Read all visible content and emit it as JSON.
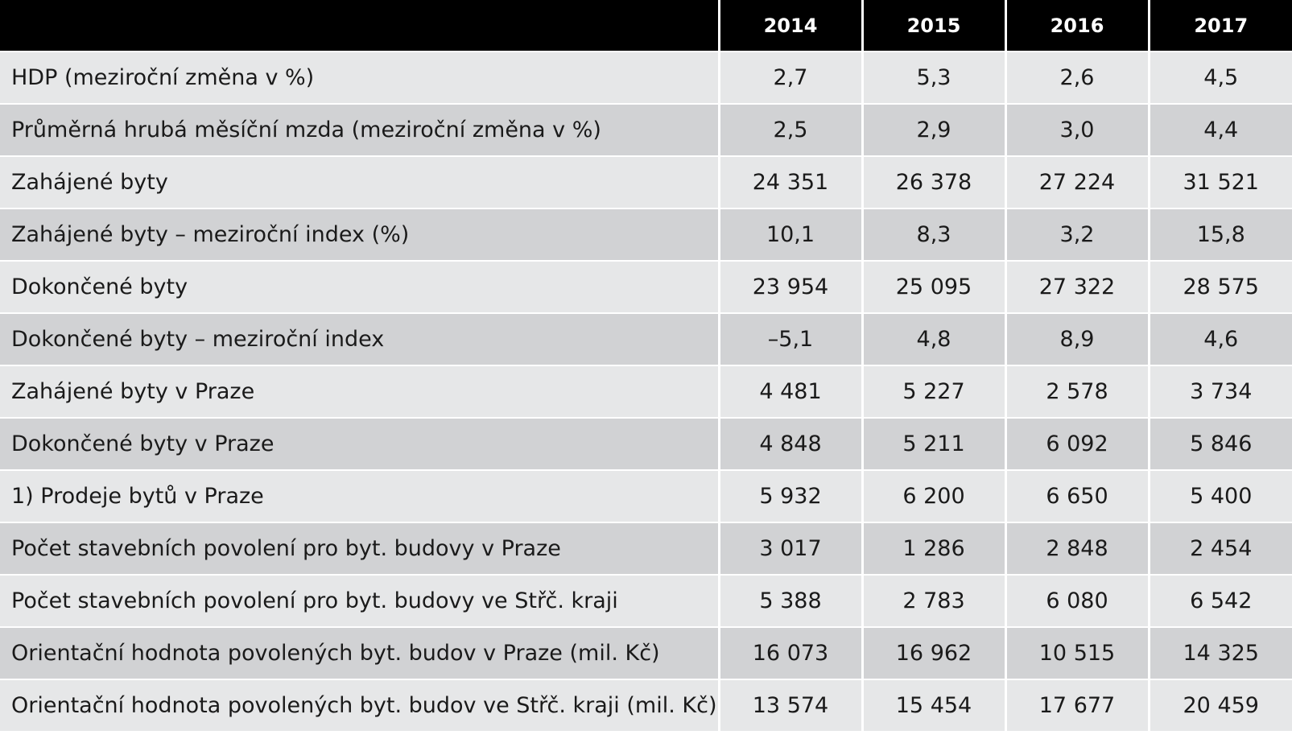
{
  "table": {
    "header": [
      "",
      "2014",
      "2015",
      "2016",
      "2017"
    ],
    "rows": [
      [
        "HDP (meziroční změna v %)",
        "2,7",
        "5,3",
        "2,6",
        "4,5"
      ],
      [
        "Průměrná hrubá měsíční mzda (meziroční změna v %)",
        "2,5",
        "2,9",
        "3,0",
        "4,4"
      ],
      [
        "Zahájené byty",
        "24 351",
        "26 378",
        "27 224",
        "31 521"
      ],
      [
        "Zahájené byty – meziroční index (%)",
        "10,1",
        "8,3",
        "3,2",
        "15,8"
      ],
      [
        "Dokončené byty",
        "23 954",
        "25 095",
        "27 322",
        "28 575"
      ],
      [
        "Dokončené byty – meziroční index",
        "–5,1",
        "4,8",
        "8,9",
        "4,6"
      ],
      [
        "Zahájené byty v Praze",
        "4 481",
        "5 227",
        "2 578",
        "3 734"
      ],
      [
        "Dokončené byty v Praze",
        "4 848",
        "5 211",
        "6 092",
        "5 846"
      ],
      [
        "1) Prodeje bytů v Praze",
        "5 932",
        "6 200",
        "6 650",
        "5 400"
      ],
      [
        "Počet stavebních povolení pro byt. budovy v Praze",
        "3 017",
        "1 286",
        "2 848",
        "2 454"
      ],
      [
        "Počet stavebních povolení pro byt. budovy ve Střč. kraji",
        "5 388",
        "2 783",
        "6 080",
        "6 542"
      ],
      [
        "Orientační hodnota povolených byt. budov v Praze (mil. Kč)",
        "16 073",
        "16 962",
        "10 515",
        "14 325"
      ],
      [
        "Orientační hodnota povolených byt. budov ve Střč. kraji (mil. Kč)",
        "13 574",
        "15 454",
        "17 677",
        "20 459"
      ]
    ]
  }
}
